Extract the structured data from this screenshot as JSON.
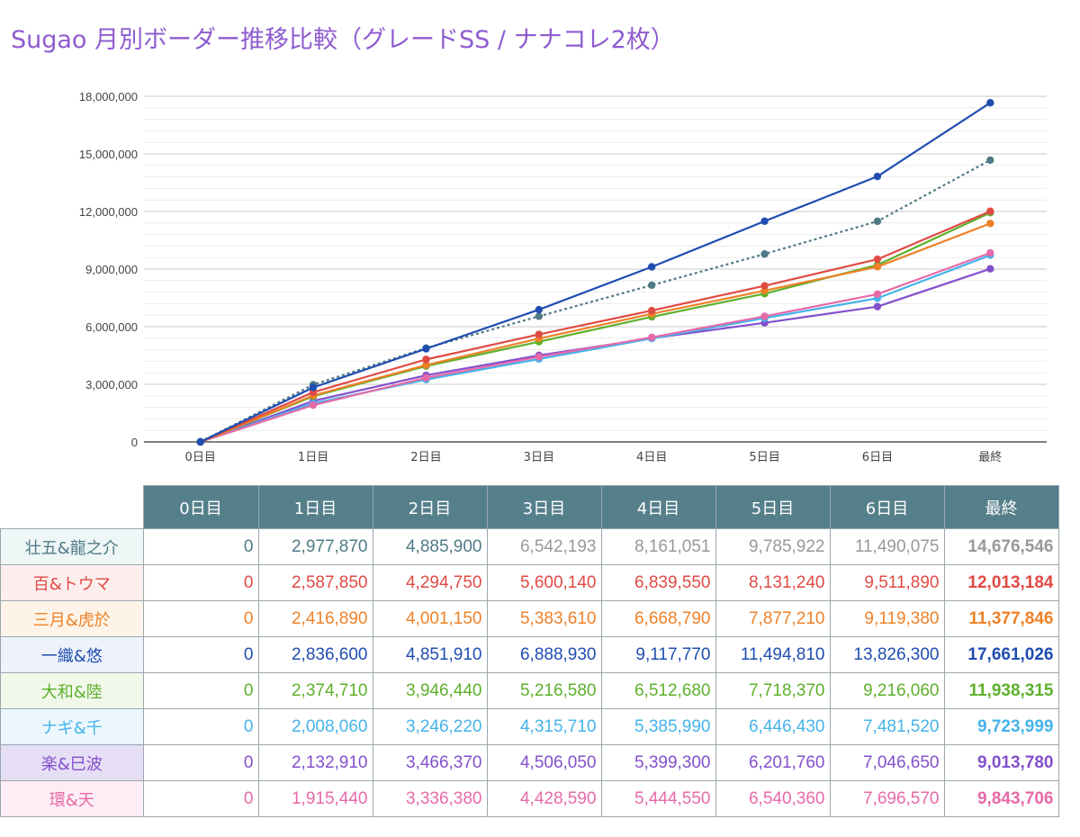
{
  "title": "Sugao 月別ボーダー推移比較（グレードSS / ナナコレ2枚）",
  "chart_data": {
    "type": "line",
    "title": "Sugao 月別ボーダー推移比較（グレードSS / ナナコレ2枚）",
    "categories": [
      "0日目",
      "1日目",
      "2日目",
      "3日目",
      "4日目",
      "5日目",
      "6日目",
      "最終"
    ],
    "ylim": [
      0,
      18000000
    ],
    "yticks": [
      0,
      3000000,
      6000000,
      9000000,
      12000000,
      15000000,
      18000000
    ],
    "ytick_labels": [
      "0",
      "3,000,000",
      "6,000,000",
      "9,000,000",
      "12,000,000",
      "15,000,000",
      "18,000,000"
    ],
    "grid": true,
    "series": [
      {
        "name": "壮五&龍之介",
        "color": "#4f7a86",
        "dashed": true,
        "values": [
          0,
          2977870,
          4885900,
          6542193,
          8161051,
          9785922,
          11490075,
          14676546
        ]
      },
      {
        "name": "百&トウマ",
        "color": "#e04a44",
        "values": [
          0,
          2587850,
          4294750,
          5600140,
          6839550,
          8131240,
          9511890,
          12013184
        ]
      },
      {
        "name": "三月&虎於",
        "color": "#ee8128",
        "values": [
          0,
          2416890,
          4001150,
          5383610,
          6668790,
          7877210,
          9119380,
          11377846
        ]
      },
      {
        "name": "一織&悠",
        "color": "#1f4db0",
        "values": [
          0,
          2836600,
          4851910,
          6888930,
          9117770,
          11494810,
          13826300,
          17661026
        ]
      },
      {
        "name": "大和&陸",
        "color": "#5eb02b",
        "values": [
          0,
          2374710,
          3946440,
          5216580,
          6512680,
          7718370,
          9216060,
          11938315
        ]
      },
      {
        "name": "ナギ&千",
        "color": "#45b3ea",
        "values": [
          0,
          2008060,
          3246220,
          4315710,
          5385990,
          6446430,
          7481520,
          9723999
        ]
      },
      {
        "name": "楽&巳波",
        "color": "#8350cc",
        "values": [
          0,
          2132910,
          3466370,
          4506050,
          5399300,
          6201760,
          7046650,
          9013780
        ]
      },
      {
        "name": "環&天",
        "color": "#e66aa8",
        "values": [
          0,
          1915440,
          3336380,
          4428590,
          5444550,
          6540360,
          7696570,
          9843706
        ]
      }
    ]
  },
  "table": {
    "headers": [
      "0日目",
      "1日目",
      "2日目",
      "3日目",
      "4日目",
      "5日目",
      "6日目",
      "最終"
    ],
    "rows": [
      {
        "name": "壮五&龍之介",
        "color": "#4f7a86",
        "name_bg": "#eef6f6",
        "estimate_color": "#999999",
        "cells": [
          "0",
          "2,977,870",
          "4,885,900",
          "6,542,193",
          "8,161,051",
          "9,785,922",
          "11,490,075",
          "14,676,546"
        ],
        "estimated_from": 3
      },
      {
        "name": "百&トウマ",
        "color": "#e04a44",
        "name_bg": "#fdeeee",
        "cells": [
          "0",
          "2,587,850",
          "4,294,750",
          "5,600,140",
          "6,839,550",
          "8,131,240",
          "9,511,890",
          "12,013,184"
        ]
      },
      {
        "name": "三月&虎於",
        "color": "#ee8128",
        "name_bg": "#fef3e8",
        "cells": [
          "0",
          "2,416,890",
          "4,001,150",
          "5,383,610",
          "6,668,790",
          "7,877,210",
          "9,119,380",
          "11,377,846"
        ]
      },
      {
        "name": "一織&悠",
        "color": "#1f4db0",
        "name_bg": "#eef3fb",
        "cells": [
          "0",
          "2,836,600",
          "4,851,910",
          "6,888,930",
          "9,117,770",
          "11,494,810",
          "13,826,300",
          "17,661,026"
        ]
      },
      {
        "name": "大和&陸",
        "color": "#5eb02b",
        "name_bg": "#f1f8ea",
        "cells": [
          "0",
          "2,374,710",
          "3,946,440",
          "5,216,580",
          "6,512,680",
          "7,718,370",
          "9,216,060",
          "11,938,315"
        ]
      },
      {
        "name": "ナギ&千",
        "color": "#45b3ea",
        "name_bg": "#ecf7fd",
        "cells": [
          "0",
          "2,008,060",
          "3,246,220",
          "4,315,710",
          "5,385,990",
          "6,446,430",
          "7,481,520",
          "9,723,999"
        ]
      },
      {
        "name": "楽&巳波",
        "color": "#8350cc",
        "name_bg": "#e6def5",
        "cells": [
          "0",
          "2,132,910",
          "3,466,370",
          "4,506,050",
          "5,399,300",
          "6,201,760",
          "7,046,650",
          "9,013,780"
        ]
      },
      {
        "name": "環&天",
        "color": "#e66aa8",
        "name_bg": "#fdeef5",
        "cells": [
          "0",
          "1,915,440",
          "3,336,380",
          "4,428,590",
          "5,444,550",
          "6,540,360",
          "7,696,570",
          "9,843,706"
        ]
      }
    ]
  }
}
